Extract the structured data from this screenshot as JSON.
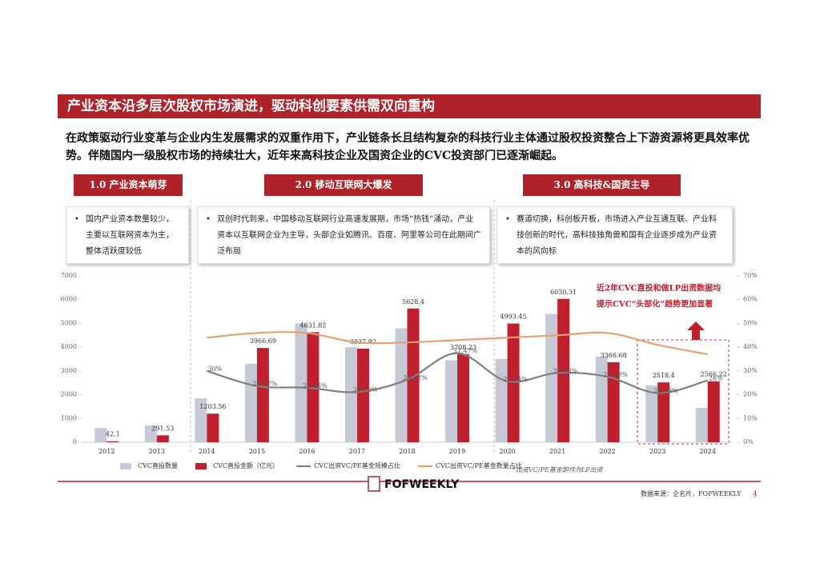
{
  "header": {
    "title": "产业资本沿多层次股权市场演进，驱动科创要素供需双向重构"
  },
  "intro": "在政策驱动行业变革与企业内生发展需求的双重作用下，产业链条长且结构复杂的科技行业主体通过股权投资整合上下游资源将更具效率优势。伴随国内一级股权市场的持续壮大，近年来高科技企业及国资企业的CVC投资部门已逐渐崛起。",
  "phases": [
    {
      "label": "1.0  产业资本萌芽",
      "text": "国内产业资本数量较少，主要以互联网资本为主，整体活跃度较低"
    },
    {
      "label": "2.0  移动互联网大爆发",
      "text": "双创时代到来，中国移动互联网行业高速发展期，市场“热钱”涌动，产业资本以互联网企业为主导，头部企业如腾讯、百度、阿里等公司在此期间广泛布局"
    },
    {
      "label": "3.0  高科技&国资主导",
      "text": "赛道切换，科创板开板，市场进入产业互通互联、产业科技创新的时代，高科技独角兽和国有企业逐步成为产业资本的风向标"
    }
  ],
  "chart_data": {
    "type": "bar_line",
    "categories": [
      "2012",
      "2013",
      "2014",
      "2015",
      "2016",
      "2017",
      "2018",
      "2019",
      "2020",
      "2021",
      "2022",
      "2023",
      "2024"
    ],
    "series": [
      {
        "name": "CVC直投数量",
        "type": "bar",
        "color": "#c5cad6",
        "values": [
          600,
          700,
          1850,
          3300,
          5000,
          4000,
          4800,
          3450,
          3500,
          5400,
          3600,
          2400,
          1450
        ]
      },
      {
        "name": "CVC直投金额（亿元）",
        "type": "bar",
        "color": "#c0202e",
        "values": [
          42.1,
          291.53,
          1203.56,
          3966.69,
          4631.82,
          3937.92,
          5628.4,
          3708.23,
          4993.45,
          6030.31,
          3366.68,
          2518.4,
          2566.22
        ],
        "labels": true
      },
      {
        "name": "CVC出资VC/PE基金规模占比",
        "type": "line",
        "axis": "y2",
        "color": "#808080",
        "values": [
          null,
          null,
          30,
          23.67,
          22.95,
          21.12,
          26.32,
          37.47,
          25.64,
          29.18,
          27.59,
          20.7,
          26
        ],
        "value_labels": [
          null,
          null,
          "30%",
          "23.67%",
          "22.95%",
          "21.12%",
          "26.32%",
          "37.47%",
          "25.64%",
          "29.18%",
          "27.59%",
          "20.70%",
          "26%"
        ]
      },
      {
        "name": "CVC出资VC/PE基金数量占比",
        "type": "line",
        "axis": "y2",
        "color": "#e8a070",
        "values": [
          null,
          null,
          44,
          46,
          46,
          42,
          42,
          43,
          44,
          45,
          46,
          41,
          37
        ]
      }
    ],
    "ylim": [
      0,
      7000
    ],
    "yticks": [
      0,
      1000,
      2000,
      3000,
      4000,
      5000,
      6000,
      7000
    ],
    "y2lim": [
      0,
      70
    ],
    "y2ticks": [
      {
        "value": 0,
        "label": "0%"
      },
      {
        "value": 10,
        "label": "10%"
      },
      {
        "value": 20,
        "label": "20%"
      },
      {
        "value": 30,
        "label": "30%"
      },
      {
        "value": 40,
        "label": "40%"
      },
      {
        "value": 50,
        "label": "50%"
      },
      {
        "value": 60,
        "label": "60%"
      },
      {
        "value": 70,
        "label": "70%"
      }
    ],
    "annotation": [
      "近2年CVC直投和做LP出资数据均",
      "提示CVC“头部化”趋势更加显著"
    ],
    "footnote": "*出资VC/PE基金即作为LP出资"
  },
  "footer": {
    "logo": "FOFWEEKLY",
    "source": "数据来源：企名片，FOFWEEKLY",
    "page": "4"
  }
}
